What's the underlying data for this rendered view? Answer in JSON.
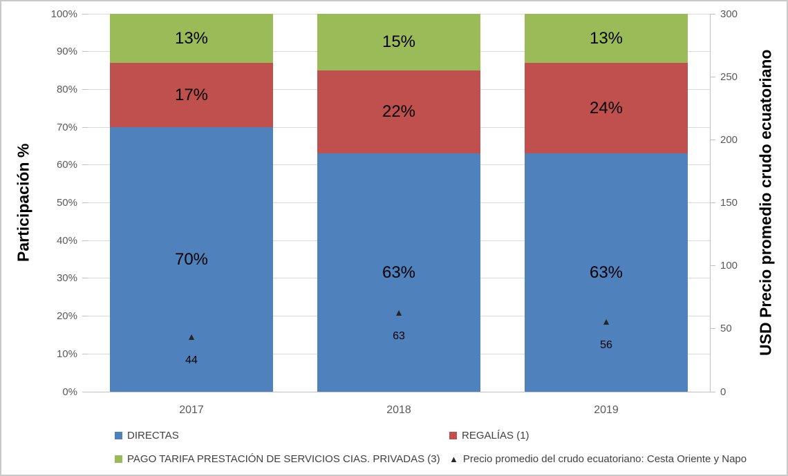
{
  "chart_data": {
    "type": "bar",
    "subtype": "stacked-100-percent-columns-with-scatter-markers",
    "categories": [
      "2017",
      "2018",
      "2019"
    ],
    "series": [
      {
        "name": "DIRECTAS",
        "color": "#4F81BD",
        "values": [
          70,
          63,
          63
        ],
        "data_labels": [
          "70%",
          "63%",
          "63%"
        ]
      },
      {
        "name": "REGALÍAS (1)",
        "color": "#C0504D",
        "values": [
          17,
          22,
          24
        ],
        "data_labels": [
          "17%",
          "22%",
          "24%"
        ]
      },
      {
        "name": "PAGO TARIFA PRESTACIÓN DE SERVICIOS CIAS. PRIVADAS (3)",
        "color": "#9BBB59",
        "values": [
          13,
          15,
          13
        ],
        "data_labels": [
          "13%",
          "15%",
          "13%"
        ]
      }
    ],
    "marker_series": {
      "name": "Precio promedio del crudo ecuatoriano: Cesta Oriente y Napo",
      "marker": "triangle",
      "marker_glyph": "▲",
      "color": "#262626",
      "axis": "right",
      "values": [
        44,
        63,
        56
      ],
      "data_labels": [
        "44",
        "63",
        "56"
      ]
    },
    "left_axis": {
      "title": "Participación %",
      "min": 0,
      "max": 100,
      "tick_labels": [
        "0%",
        "10%",
        "20%",
        "30%",
        "40%",
        "50%",
        "60%",
        "70%",
        "80%",
        "90%",
        "100%"
      ]
    },
    "right_axis": {
      "title": "USD Precio promedio crudo ecuatoriano",
      "min": 0,
      "max": 300,
      "tick_labels": [
        "0",
        "50",
        "100",
        "150",
        "200",
        "250",
        "300"
      ]
    },
    "gridlines": "horizontal-every-10pct",
    "gridline_color": "#D9D9D9",
    "legend_position": "bottom-two-columns",
    "legend": [
      {
        "label": "DIRECTAS",
        "marker": "square",
        "color": "#4F81BD"
      },
      {
        "label": "REGALÍAS (1)",
        "marker": "square",
        "color": "#C0504D"
      },
      {
        "label": "PAGO TARIFA PRESTACIÓN DE SERVICIOS CIAS. PRIVADAS (3)",
        "marker": "square",
        "color": "#9BBB59"
      },
      {
        "label": "Precio promedio del crudo ecuatoriano: Cesta Oriente y Napo",
        "marker": "triangle",
        "color": "#262626"
      }
    ]
  }
}
